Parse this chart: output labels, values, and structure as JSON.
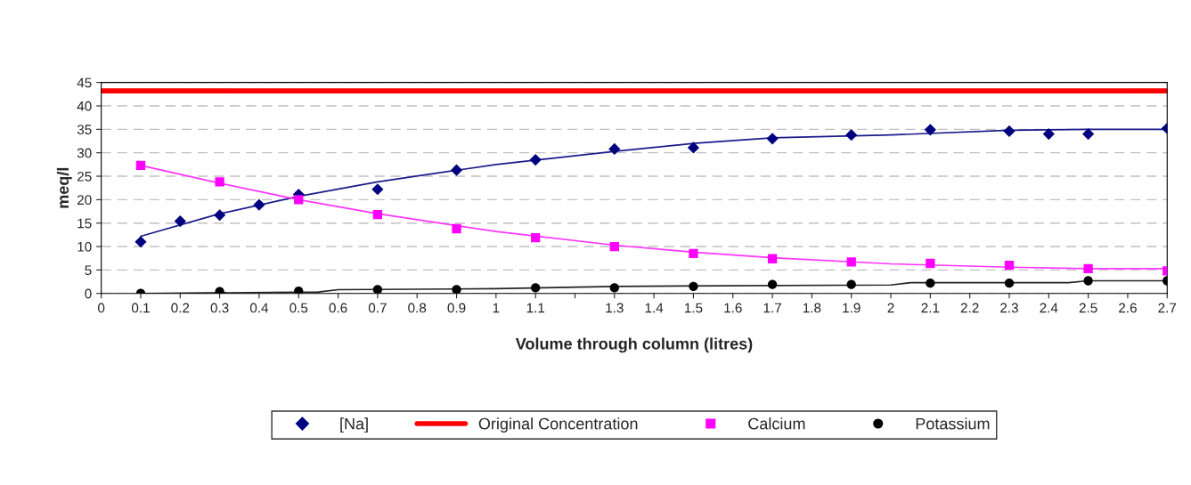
{
  "chart_data": {
    "type": "scatter",
    "xlabel": "Volume through column (litres)",
    "ylabel": "meq/l",
    "xlim": [
      0,
      2.7
    ],
    "ylim": [
      0,
      45
    ],
    "xticks": [
      0,
      0.1,
      0.2,
      0.3,
      0.4,
      0.5,
      0.6,
      0.7,
      0.8,
      0.9,
      1,
      1.1,
      {
        "value": 1.2,
        "label": null
      },
      1.3,
      1.4,
      1.5,
      1.6,
      1.7,
      1.8,
      1.9,
      2,
      2.1,
      2.2,
      2.3,
      2.4,
      2.5,
      2.6,
      2.7
    ],
    "yticks": [
      0,
      5,
      10,
      15,
      20,
      25,
      30,
      35,
      40,
      45
    ],
    "grid": "y",
    "legend": "bottom",
    "series": [
      {
        "name": "[Na]",
        "marker": "diamond",
        "color": "#000080",
        "x": [
          0.1,
          0.2,
          0.3,
          0.4,
          0.5,
          0.7,
          0.9,
          1.1,
          1.3,
          1.5,
          1.7,
          1.9,
          2.1,
          2.3,
          2.4,
          2.5,
          2.7
        ],
        "values": [
          11,
          15.4,
          16.7,
          18.9,
          21.1,
          22.2,
          26.3,
          28.5,
          30.8,
          31.1,
          33,
          33.8,
          34.9,
          34.6,
          34,
          34,
          35.2
        ]
      },
      {
        "name": "Original Concentration",
        "type": "line",
        "marker": "none",
        "color": "#ff0000",
        "x": [
          0,
          2.7
        ],
        "values": [
          43.2,
          43.2
        ]
      },
      {
        "name": "Calcium",
        "marker": "square",
        "color": "#ff00ff",
        "x": [
          0.1,
          0.3,
          0.5,
          0.7,
          0.9,
          1.1,
          1.3,
          1.5,
          1.7,
          1.9,
          2.1,
          2.3,
          2.5,
          2.7
        ],
        "values": [
          27.3,
          23.8,
          20,
          16.8,
          13.8,
          11.9,
          10,
          8.5,
          7.4,
          6.7,
          6.4,
          6,
          5.3,
          4.8
        ]
      },
      {
        "name": "Potassium",
        "marker": "circle",
        "color": "#000000",
        "x": [
          0.1,
          0.3,
          0.5,
          0.7,
          0.9,
          1.1,
          1.3,
          1.5,
          1.7,
          1.9,
          2.1,
          2.3,
          2.5,
          2.7
        ],
        "values": [
          0,
          0.4,
          0.5,
          0.8,
          0.8,
          1.2,
          1.2,
          1.5,
          1.9,
          1.9,
          2.2,
          2.2,
          2.7,
          2.7
        ]
      },
      {
        "type": "line",
        "marker": "none",
        "color": "#1a1a8c",
        "x": [
          0.1,
          0.3,
          0.5,
          0.7,
          1.0,
          1.3,
          1.5,
          1.7,
          2.0,
          2.3,
          2.5,
          2.7
        ],
        "values": [
          12.2,
          17,
          20.7,
          23.8,
          27.5,
          30.3,
          32,
          33.2,
          33.8,
          34.8,
          35,
          35
        ]
      },
      {
        "type": "line",
        "marker": "none",
        "color": "#ff33ff",
        "x": [
          0.1,
          0.3,
          0.5,
          0.7,
          1.0,
          1.3,
          1.5,
          1.7,
          2.0,
          2.3,
          2.5,
          2.7
        ],
        "values": [
          27.3,
          23.5,
          20,
          17,
          13.2,
          10.3,
          8.8,
          7.6,
          6.3,
          5.6,
          5.3,
          5.3
        ]
      },
      {
        "type": "line",
        "marker": "none",
        "color": "#222222",
        "x": [
          0.1,
          0.55,
          0.6,
          1.0,
          1.3,
          2.0,
          2.05,
          2.45,
          2.5,
          2.7
        ],
        "values": [
          0,
          0.3,
          0.8,
          1,
          1.5,
          1.8,
          2.3,
          2.3,
          2.7,
          2.7
        ]
      }
    ]
  }
}
